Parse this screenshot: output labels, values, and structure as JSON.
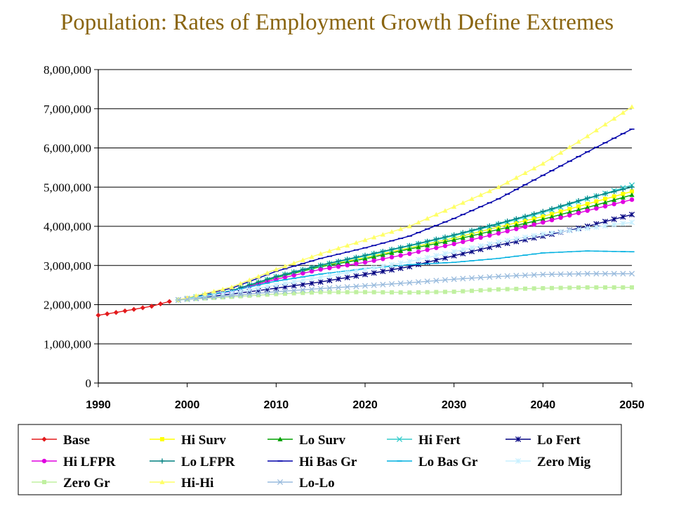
{
  "page": {
    "title": "Population: Rates of Employment Growth Define Extremes"
  },
  "chart_data": {
    "type": "line",
    "title": "Population: Rates of Employment Growth Define Extremes",
    "xlabel": "",
    "ylabel": "",
    "xlim": [
      1990,
      2050
    ],
    "ylim": [
      0,
      8000000
    ],
    "x_ticks": [
      "1990",
      "2000",
      "2010",
      "2020",
      "2030",
      "2040",
      "2050"
    ],
    "y_ticks": [
      "0",
      "1,000,000",
      "2,000,000",
      "3,000,000",
      "4,000,000",
      "5,000,000",
      "6,000,000",
      "7,000,000",
      "8,000,000"
    ],
    "grid": "horizontal",
    "legend_position": "bottom",
    "series": [
      {
        "name": "Base",
        "color": "#e31a1c",
        "marker": "diamond",
        "points": [
          [
            1990,
            1730000
          ],
          [
            1992,
            1800000
          ],
          [
            1994,
            1880000
          ],
          [
            1996,
            1960000
          ],
          [
            1998,
            2080000
          ]
        ]
      },
      {
        "name": "Hi Surv",
        "color": "#ffff00",
        "marker": "square",
        "points": [
          [
            1999,
            2120000
          ],
          [
            2005,
            2350000
          ],
          [
            2010,
            2700000
          ],
          [
            2015,
            2980000
          ],
          [
            2020,
            3200000
          ],
          [
            2025,
            3450000
          ],
          [
            2030,
            3700000
          ],
          [
            2035,
            3980000
          ],
          [
            2040,
            4250000
          ],
          [
            2045,
            4570000
          ],
          [
            2050,
            4890000
          ]
        ]
      },
      {
        "name": "Lo Surv",
        "color": "#00a000",
        "marker": "triangle",
        "points": [
          [
            1999,
            2120000
          ],
          [
            2005,
            2350000
          ],
          [
            2010,
            2690000
          ],
          [
            2015,
            2970000
          ],
          [
            2020,
            3170000
          ],
          [
            2025,
            3420000
          ],
          [
            2030,
            3650000
          ],
          [
            2035,
            3920000
          ],
          [
            2040,
            4180000
          ],
          [
            2045,
            4480000
          ],
          [
            2050,
            4800000
          ]
        ]
      },
      {
        "name": "Hi Fert",
        "color": "#33cccc",
        "marker": "x",
        "points": [
          [
            1999,
            2120000
          ],
          [
            2005,
            2350000
          ],
          [
            2010,
            2710000
          ],
          [
            2015,
            3000000
          ],
          [
            2020,
            3240000
          ],
          [
            2025,
            3500000
          ],
          [
            2030,
            3760000
          ],
          [
            2035,
            4050000
          ],
          [
            2040,
            4350000
          ],
          [
            2045,
            4700000
          ],
          [
            2050,
            5050000
          ]
        ]
      },
      {
        "name": "Lo Fert",
        "color": "#000080",
        "marker": "star",
        "points": [
          [
            1999,
            2120000
          ],
          [
            2005,
            2270000
          ],
          [
            2010,
            2420000
          ],
          [
            2015,
            2580000
          ],
          [
            2020,
            2770000
          ],
          [
            2025,
            2970000
          ],
          [
            2030,
            3250000
          ],
          [
            2035,
            3520000
          ],
          [
            2040,
            3750000
          ],
          [
            2045,
            4000000
          ],
          [
            2050,
            4300000
          ]
        ]
      },
      {
        "name": "Hi LFPR",
        "color": "#e000e0",
        "marker": "circle",
        "points": [
          [
            1999,
            2120000
          ],
          [
            2005,
            2340000
          ],
          [
            2010,
            2650000
          ],
          [
            2015,
            2900000
          ],
          [
            2020,
            3080000
          ],
          [
            2025,
            3300000
          ],
          [
            2030,
            3550000
          ],
          [
            2035,
            3820000
          ],
          [
            2040,
            4100000
          ],
          [
            2045,
            4400000
          ],
          [
            2050,
            4680000
          ]
        ]
      },
      {
        "name": "Lo LFPR",
        "color": "#008080",
        "marker": "plus",
        "points": [
          [
            1999,
            2120000
          ],
          [
            2005,
            2360000
          ],
          [
            2010,
            2720000
          ],
          [
            2015,
            3010000
          ],
          [
            2020,
            3260000
          ],
          [
            2025,
            3510000
          ],
          [
            2030,
            3780000
          ],
          [
            2035,
            4070000
          ],
          [
            2040,
            4380000
          ],
          [
            2045,
            4720000
          ],
          [
            2050,
            5000000
          ]
        ]
      },
      {
        "name": "Hi Bas Gr",
        "color": "#0000aa",
        "marker": "dash",
        "points": [
          [
            1999,
            2120000
          ],
          [
            2005,
            2420000
          ],
          [
            2010,
            2850000
          ],
          [
            2015,
            3180000
          ],
          [
            2020,
            3450000
          ],
          [
            2025,
            3750000
          ],
          [
            2030,
            4200000
          ],
          [
            2035,
            4700000
          ],
          [
            2040,
            5300000
          ],
          [
            2045,
            5900000
          ],
          [
            2050,
            6480000
          ]
        ]
      },
      {
        "name": "Lo Bas Gr",
        "color": "#00b0e0",
        "marker": "dash",
        "points": [
          [
            1999,
            2120000
          ],
          [
            2005,
            2350000
          ],
          [
            2010,
            2600000
          ],
          [
            2015,
            2780000
          ],
          [
            2020,
            2920000
          ],
          [
            2025,
            3020000
          ],
          [
            2030,
            3080000
          ],
          [
            2035,
            3180000
          ],
          [
            2040,
            3320000
          ],
          [
            2045,
            3370000
          ],
          [
            2050,
            3350000
          ]
        ]
      },
      {
        "name": "Zero Mig",
        "color": "#c8f0ff",
        "marker": "star",
        "points": [
          [
            1999,
            2120000
          ],
          [
            2005,
            2300000
          ],
          [
            2010,
            2500000
          ],
          [
            2015,
            2700000
          ],
          [
            2020,
            2900000
          ],
          [
            2025,
            3100000
          ],
          [
            2030,
            3350000
          ],
          [
            2035,
            3600000
          ],
          [
            2040,
            3800000
          ],
          [
            2045,
            3950000
          ],
          [
            2050,
            4100000
          ]
        ]
      },
      {
        "name": "Zero Gr",
        "color": "#c0f0a0",
        "marker": "square",
        "points": [
          [
            1999,
            2120000
          ],
          [
            2005,
            2200000
          ],
          [
            2010,
            2270000
          ],
          [
            2015,
            2320000
          ],
          [
            2020,
            2320000
          ],
          [
            2025,
            2310000
          ],
          [
            2030,
            2330000
          ],
          [
            2035,
            2390000
          ],
          [
            2040,
            2420000
          ],
          [
            2045,
            2440000
          ],
          [
            2050,
            2440000
          ]
        ]
      },
      {
        "name": "Hi-Hi",
        "color": "#ffff66",
        "marker": "triangle",
        "points": [
          [
            1999,
            2120000
          ],
          [
            2005,
            2450000
          ],
          [
            2010,
            2900000
          ],
          [
            2015,
            3300000
          ],
          [
            2020,
            3650000
          ],
          [
            2025,
            4000000
          ],
          [
            2030,
            4500000
          ],
          [
            2035,
            5000000
          ],
          [
            2040,
            5600000
          ],
          [
            2045,
            6300000
          ],
          [
            2050,
            7050000
          ]
        ]
      },
      {
        "name": "Lo-Lo",
        "color": "#99bbdd",
        "marker": "x",
        "points": [
          [
            1999,
            2120000
          ],
          [
            2005,
            2230000
          ],
          [
            2010,
            2330000
          ],
          [
            2015,
            2410000
          ],
          [
            2020,
            2480000
          ],
          [
            2025,
            2560000
          ],
          [
            2030,
            2650000
          ],
          [
            2035,
            2720000
          ],
          [
            2040,
            2770000
          ],
          [
            2045,
            2790000
          ],
          [
            2050,
            2790000
          ]
        ]
      }
    ]
  }
}
